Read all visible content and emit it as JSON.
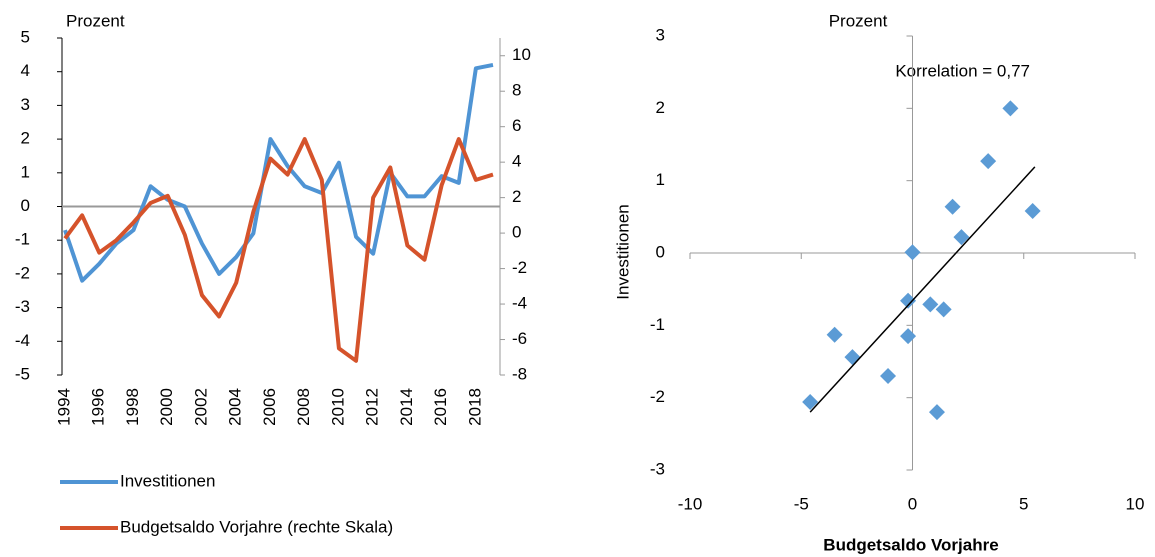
{
  "chart_data": [
    {
      "type": "line",
      "y_label": "Prozent",
      "categories": [
        "1994",
        null,
        "1996",
        null,
        "1998",
        null,
        "2000",
        null,
        "2002",
        null,
        "2004",
        null,
        "2006",
        null,
        "2008",
        null,
        "2010",
        null,
        "2012",
        null,
        "2014",
        null,
        "2016",
        null,
        "2018",
        null
      ],
      "series": [
        {
          "name": "Investitionen",
          "color": "#4f94d4",
          "values": [
            -0.7,
            -2.2,
            -1.7,
            -1.1,
            -0.7,
            0.6,
            0.2,
            0.0,
            -1.1,
            -2.0,
            -1.5,
            -0.8,
            2.0,
            1.2,
            0.6,
            0.4,
            1.3,
            -0.9,
            -1.4,
            1.0,
            0.3,
            0.3,
            0.9,
            0.7,
            4.1,
            4.2
          ]
        },
        {
          "name": "Budgetsaldo Vorjahre (rechte Skala)",
          "color": "#d5532b",
          "axis": "y2",
          "values": [
            -0.3,
            1.0,
            -1.1,
            -0.4,
            0.6,
            1.7,
            2.1,
            -0.1,
            -3.5,
            -4.7,
            -2.8,
            1.2,
            4.2,
            3.3,
            5.3,
            3.0,
            -6.5,
            -7.2,
            2.0,
            3.7,
            -0.7,
            -1.5,
            2.7,
            5.3,
            3.0,
            3.3
          ]
        }
      ],
      "ylim": [
        -5,
        5
      ],
      "yticks": [
        -5,
        -4,
        -3,
        -2,
        -1,
        0,
        1,
        2,
        3,
        4,
        5
      ],
      "y2lim": [
        -8,
        11
      ],
      "y2ticks": [
        -8,
        -6,
        -4,
        -2,
        0,
        2,
        4,
        6,
        8,
        10
      ],
      "legend": "bottom"
    },
    {
      "type": "scatter",
      "y_unit": "Prozent",
      "x_label": "Budgetsaldo Vorjahre",
      "y_label": "Investitionen",
      "annotation": "Korrelation = 0,77",
      "color": "#5b9bd5",
      "x": [
        4.4,
        3.4,
        1.8,
        5.4,
        2.2,
        0.0,
        -0.2,
        0.8,
        1.4,
        -3.5,
        -0.2,
        -2.7,
        -1.1,
        -4.6,
        1.1
      ],
      "values": [
        2.0,
        1.27,
        0.64,
        0.58,
        0.22,
        0.01,
        -0.66,
        -0.71,
        -0.78,
        -1.13,
        -1.15,
        -1.44,
        -1.7,
        -2.06,
        -2.2
      ],
      "trendline": {
        "color": "#000000",
        "x": [
          -4.6,
          5.5
        ],
        "values": [
          -2.2,
          1.19
        ]
      },
      "xlim": [
        -10,
        10
      ],
      "xticks": [
        -10,
        -5,
        0,
        5,
        10
      ],
      "ylim": [
        -3,
        3
      ],
      "yticks": [
        -3,
        -2,
        -1,
        0,
        1,
        2,
        3
      ]
    }
  ]
}
